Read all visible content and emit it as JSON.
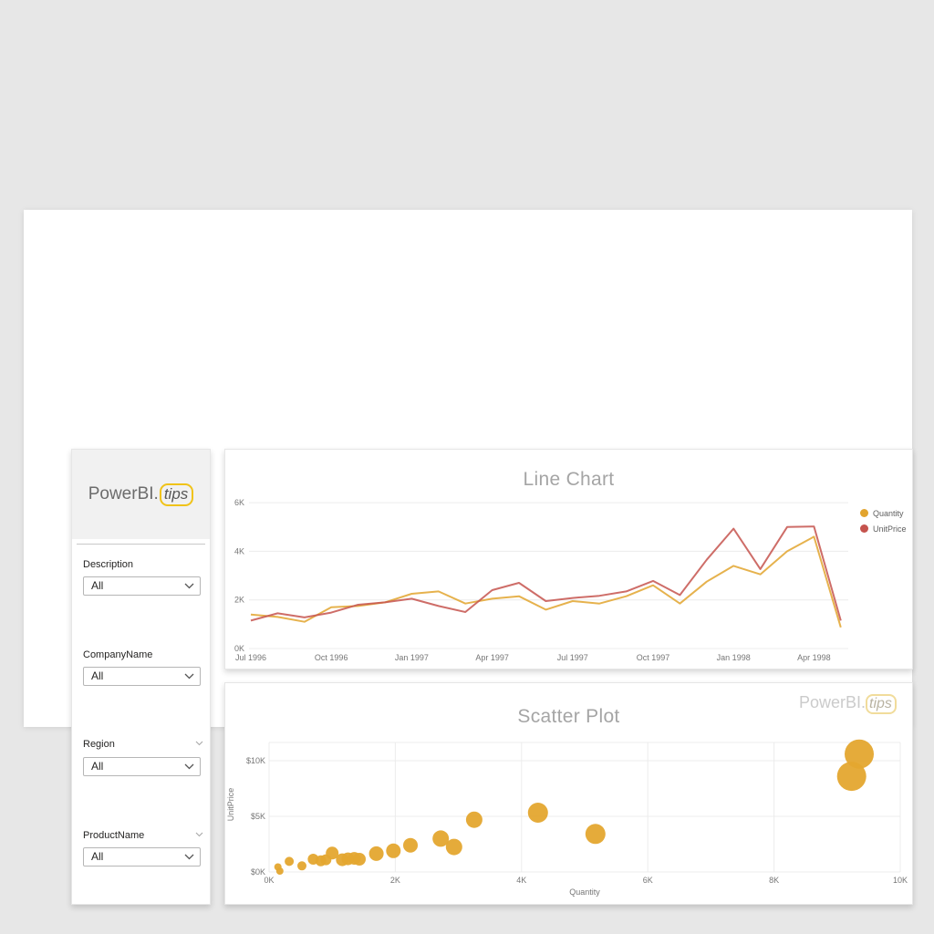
{
  "logo": {
    "prefix": "PowerBI.",
    "suffix": "tips"
  },
  "watermark": {
    "prefix": "PowerBI.",
    "suffix": "tips"
  },
  "colors": {
    "quantity": "#e2a42e",
    "unitprice": "#c5534d",
    "bubble": "#e4a62f",
    "gridline": "#ececec",
    "accent_yellow": "#f0c319"
  },
  "sidebar": {
    "slicers": [
      {
        "label": "Description",
        "value": "All",
        "header_chevron": false
      },
      {
        "label": "CompanyName",
        "value": "All",
        "header_chevron": false
      },
      {
        "label": "Region",
        "value": "All",
        "header_chevron": true
      },
      {
        "label": "ProductName",
        "value": "All",
        "header_chevron": true
      }
    ]
  },
  "chart_data": [
    {
      "type": "line",
      "title": "Line Chart",
      "x": [
        "Jul 1996",
        "Aug 1996",
        "Sep 1996",
        "Oct 1996",
        "Nov 1996",
        "Dec 1996",
        "Jan 1997",
        "Feb 1997",
        "Mar 1997",
        "Apr 1997",
        "May 1997",
        "Jun 1997",
        "Jul 1997",
        "Aug 1997",
        "Sep 1997",
        "Oct 1997",
        "Nov 1997",
        "Dec 1997",
        "Jan 1998",
        "Feb 1998",
        "Mar 1998",
        "Apr 1998",
        "May 1998"
      ],
      "x_tick_every": 3,
      "x_tick_labels": [
        "Jul 1996",
        "Oct 1996",
        "Jan 1997",
        "Apr 1997",
        "Jul 1997",
        "Oct 1997",
        "Jan 1998",
        "Apr 1998"
      ],
      "y_ticks": [
        "0K",
        "2K",
        "4K",
        "6K"
      ],
      "y_tick_values": [
        0,
        2,
        4,
        6
      ],
      "ylim": [
        0,
        6.6
      ],
      "grid": true,
      "legend_position": "right",
      "series": [
        {
          "name": "Quantity",
          "color": "#e2a42e",
          "values": [
            1.4,
            1.3,
            1.1,
            1.7,
            1.75,
            1.9,
            2.25,
            2.35,
            1.85,
            2.05,
            2.15,
            1.6,
            1.95,
            1.85,
            2.15,
            2.6,
            1.85,
            2.75,
            3.4,
            3.05,
            4.0,
            4.6,
            0.87
          ]
        },
        {
          "name": "UnitPrice",
          "color": "#c5534d",
          "values": [
            1.15,
            1.45,
            1.28,
            1.48,
            1.8,
            1.9,
            2.05,
            1.75,
            1.5,
            2.4,
            2.7,
            1.95,
            2.08,
            2.17,
            2.35,
            2.78,
            2.2,
            3.65,
            4.93,
            3.27,
            5.0,
            5.02,
            1.15
          ]
        }
      ]
    },
    {
      "type": "scatter",
      "title": "Scatter Plot",
      "xlabel": "Quantity",
      "ylabel": "UnitPrice",
      "x_ticks": [
        "0K",
        "2K",
        "4K",
        "6K",
        "8K",
        "10K"
      ],
      "x_tick_values": [
        0,
        2,
        4,
        6,
        8,
        10
      ],
      "y_ticks": [
        "$0K",
        "$5K",
        "$10K"
      ],
      "y_tick_values": [
        0,
        5,
        10
      ],
      "xlim": [
        0,
        10.2
      ],
      "ylim": [
        0,
        11.6
      ],
      "grid": true,
      "point_color": "#e4a62f",
      "points": [
        {
          "x": 0.14,
          "y": 0.45,
          "r": 4
        },
        {
          "x": 0.17,
          "y": 0.08,
          "r": 4
        },
        {
          "x": 0.32,
          "y": 0.95,
          "r": 5
        },
        {
          "x": 0.52,
          "y": 0.55,
          "r": 5
        },
        {
          "x": 0.7,
          "y": 1.15,
          "r": 6
        },
        {
          "x": 0.82,
          "y": 1.0,
          "r": 6
        },
        {
          "x": 0.9,
          "y": 1.1,
          "r": 6
        },
        {
          "x": 1.0,
          "y": 1.7,
          "r": 7
        },
        {
          "x": 1.16,
          "y": 1.1,
          "r": 7
        },
        {
          "x": 1.25,
          "y": 1.18,
          "r": 7
        },
        {
          "x": 1.35,
          "y": 1.22,
          "r": 7
        },
        {
          "x": 1.43,
          "y": 1.15,
          "r": 7
        },
        {
          "x": 1.7,
          "y": 1.65,
          "r": 8
        },
        {
          "x": 1.97,
          "y": 1.9,
          "r": 8
        },
        {
          "x": 2.24,
          "y": 2.4,
          "r": 8
        },
        {
          "x": 2.72,
          "y": 3.0,
          "r": 9
        },
        {
          "x": 2.93,
          "y": 2.25,
          "r": 9
        },
        {
          "x": 3.25,
          "y": 4.7,
          "r": 9
        },
        {
          "x": 4.26,
          "y": 5.33,
          "r": 11
        },
        {
          "x": 5.17,
          "y": 3.42,
          "r": 11
        },
        {
          "x": 9.35,
          "y": 10.6,
          "r": 16
        },
        {
          "x": 9.23,
          "y": 8.6,
          "r": 16
        }
      ]
    }
  ]
}
